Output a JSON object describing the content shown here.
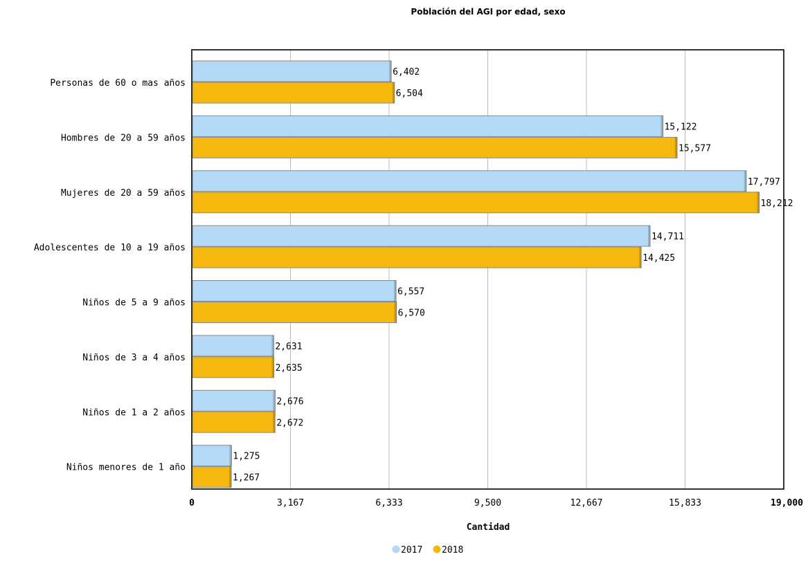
{
  "chart_data": {
    "type": "bar",
    "orientation": "horizontal",
    "title": "Población del AGI por edad, sexo",
    "xlabel": "Cantidad",
    "ylabel": "",
    "xlim": [
      0,
      19000
    ],
    "ticks": [
      "0",
      "3,167",
      "6,333",
      "9,500",
      "12,667",
      "15,833",
      "19,000"
    ],
    "tick_values": [
      0,
      3167,
      6333,
      9500,
      12667,
      15833,
      19000
    ],
    "grid": true,
    "legend_position": "bottom",
    "categories": [
      "Personas de 60 o mas años",
      "Hombres de 20 a 59 años",
      "Mujeres de 20 a 59 años",
      "Adolescentes de 10 a 19 años",
      "Niños de 5 a 9 años",
      "Niños de 3 a 4 años",
      "Niños de 1 a 2 años",
      "Niños menores de 1 año"
    ],
    "series": [
      {
        "name": "2017",
        "color": "#b3d9f7",
        "values": [
          6402,
          15122,
          17797,
          14711,
          6557,
          2631,
          2676,
          1275
        ],
        "labels": [
          "6,402",
          "15,122",
          "17,797",
          "14,711",
          "6,557",
          "2,631",
          "2,676",
          "1,275"
        ]
      },
      {
        "name": "2018",
        "color": "#f5b80e",
        "values": [
          6504,
          15577,
          18212,
          14425,
          6570,
          2635,
          2672,
          1267
        ],
        "labels": [
          "6,504",
          "15,577",
          "18,212",
          "14,425",
          "6,570",
          "2,635",
          "2,672",
          "1,267"
        ]
      }
    ]
  }
}
